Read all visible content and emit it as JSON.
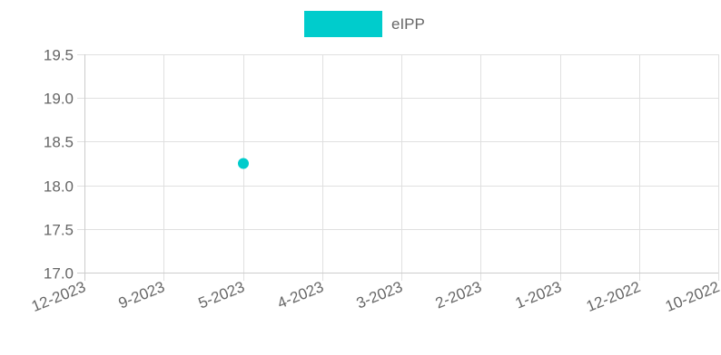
{
  "chart_data": {
    "type": "scatter",
    "title": "",
    "xlabel": "",
    "ylabel": "",
    "categories": [
      "12-2023",
      "9-2023",
      "5-2023",
      "4-2023",
      "3-2023",
      "2-2023",
      "1-2023",
      "12-2022",
      "10-2022"
    ],
    "ylim": [
      17.0,
      19.5
    ],
    "yticks": [
      "19.5",
      "19.0",
      "18.5",
      "18.0",
      "17.5",
      "17.0"
    ],
    "grid": true,
    "legend_position": "top",
    "series": [
      {
        "name": "eIPP",
        "color": "#00CCCC",
        "points": [
          {
            "x": "5-2023",
            "y": 18.25
          }
        ]
      }
    ]
  }
}
